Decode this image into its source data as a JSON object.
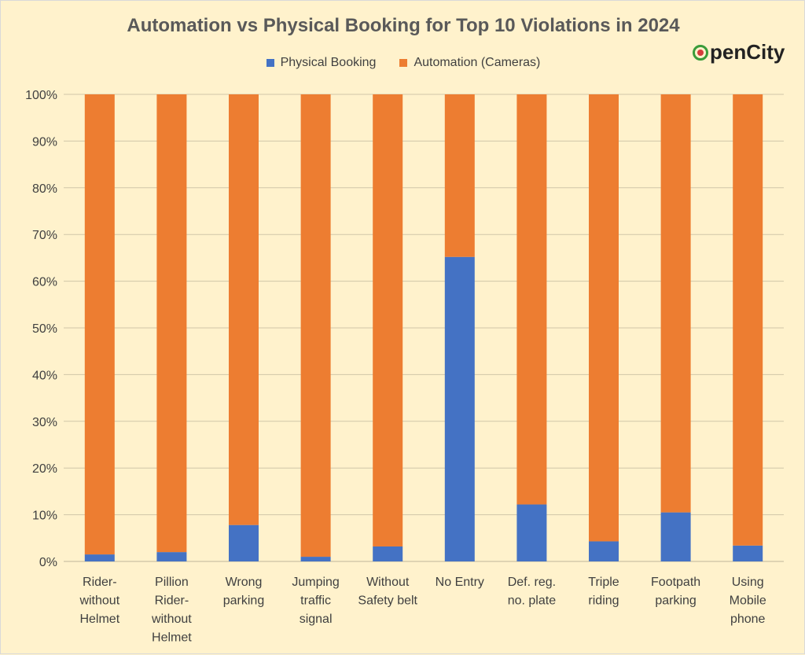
{
  "chart_data": {
    "type": "bar",
    "stacked": true,
    "title": "Automation vs Physical Booking for Top 10 Violations in 2024",
    "categories": [
      [
        "Rider-",
        "without",
        "Helmet"
      ],
      [
        "Pillion",
        "Rider-",
        "without",
        "Helmet"
      ],
      [
        "Wrong",
        "parking"
      ],
      [
        "Jumping",
        "traffic",
        "signal"
      ],
      [
        "Without",
        "Safety belt"
      ],
      [
        "No Entry"
      ],
      [
        "Def. reg.",
        "no. plate"
      ],
      [
        "Triple",
        "riding"
      ],
      [
        "Footpath",
        "parking"
      ],
      [
        "Using",
        "Mobile",
        "phone"
      ]
    ],
    "series": [
      {
        "name": "Physical Booking",
        "color": "#4472c4",
        "values": [
          1.5,
          2.0,
          7.8,
          1.0,
          3.2,
          65.2,
          12.2,
          4.3,
          10.5,
          3.4
        ]
      },
      {
        "name": "Automation (Cameras)",
        "color": "#ed7d31",
        "values": [
          98.5,
          98.0,
          92.2,
          99.0,
          96.8,
          34.8,
          87.8,
          95.7,
          89.5,
          96.6
        ]
      }
    ],
    "ylim": [
      0,
      100
    ],
    "yticks": [
      "0%",
      "10%",
      "20%",
      "30%",
      "40%",
      "50%",
      "60%",
      "70%",
      "80%",
      "90%",
      "100%"
    ],
    "xlabel": "",
    "ylabel": "",
    "grid": true,
    "legend": "top"
  },
  "logo": {
    "text": "penCity"
  }
}
